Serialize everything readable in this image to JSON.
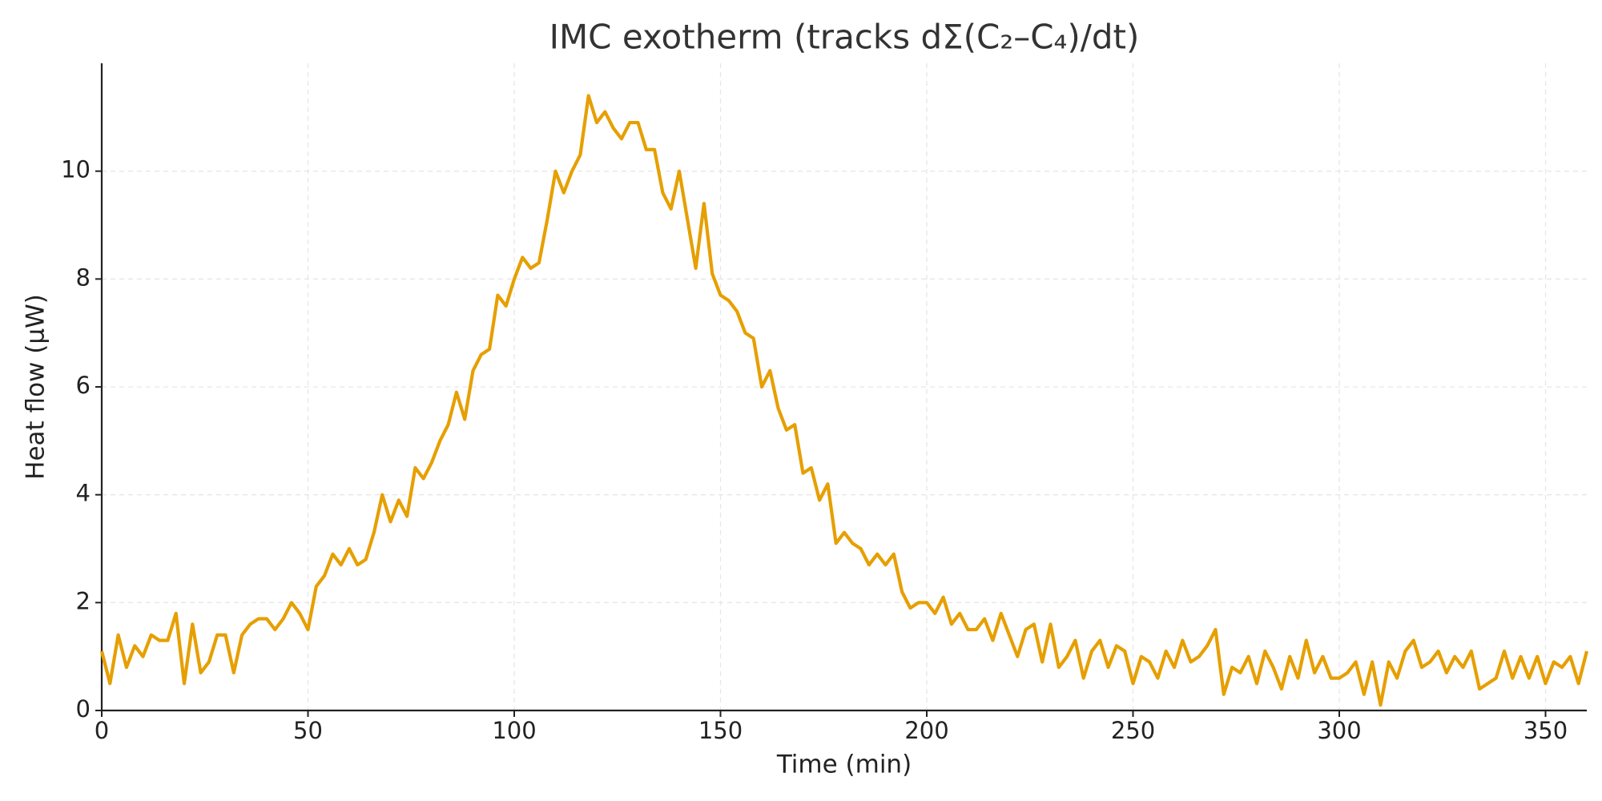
{
  "chart_data": {
    "type": "line",
    "title": "IMC exotherm (tracks dΣ(C₂–C₄)/dt)",
    "x_label": "Time (min)",
    "y_label": "Heat flow (μW)",
    "xlim": [
      0,
      360
    ],
    "ylim": [
      0,
      12
    ],
    "xticks": [
      0,
      50,
      100,
      150,
      200,
      250,
      300,
      350
    ],
    "yticks": [
      0,
      2,
      4,
      6,
      8,
      10
    ],
    "grid": true,
    "series": [
      {
        "name": "Heat flow",
        "color": "#e69f00",
        "x": [
          0,
          2,
          4,
          6,
          8,
          10,
          12,
          14,
          16,
          18,
          20,
          22,
          24,
          26,
          28,
          30,
          32,
          34,
          36,
          38,
          40,
          42,
          44,
          46,
          48,
          50,
          52,
          54,
          56,
          58,
          60,
          62,
          64,
          66,
          68,
          70,
          72,
          74,
          76,
          78,
          80,
          82,
          84,
          86,
          88,
          90,
          92,
          94,
          96,
          98,
          100,
          102,
          104,
          106,
          108,
          110,
          112,
          114,
          116,
          118,
          120,
          122,
          124,
          126,
          128,
          130,
          132,
          134,
          136,
          138,
          140,
          142,
          144,
          146,
          148,
          150,
          152,
          154,
          156,
          158,
          160,
          162,
          164,
          166,
          168,
          170,
          172,
          174,
          176,
          178,
          180,
          182,
          184,
          186,
          188,
          190,
          192,
          194,
          196,
          198,
          200,
          202,
          204,
          206,
          208,
          210,
          212,
          214,
          216,
          218,
          220,
          222,
          224,
          226,
          228,
          230,
          232,
          234,
          236,
          238,
          240,
          242,
          244,
          246,
          248,
          250,
          252,
          254,
          256,
          258,
          260,
          262,
          264,
          266,
          268,
          270,
          272,
          274,
          276,
          278,
          280,
          282,
          284,
          286,
          288,
          290,
          292,
          294,
          296,
          298,
          300,
          302,
          304,
          306,
          308,
          310,
          312,
          314,
          316,
          318,
          320,
          322,
          324,
          326,
          328,
          330,
          332,
          334,
          336,
          338,
          340,
          342,
          344,
          346,
          348,
          350,
          352,
          354,
          356,
          358,
          360
        ],
        "values": [
          1.1,
          0.5,
          1.4,
          0.8,
          1.2,
          1.0,
          1.4,
          1.3,
          1.3,
          1.8,
          0.5,
          1.6,
          0.7,
          0.9,
          1.4,
          1.4,
          0.7,
          1.4,
          1.6,
          1.7,
          1.7,
          1.5,
          1.7,
          2.0,
          1.8,
          1.5,
          2.3,
          2.5,
          2.9,
          2.7,
          3.0,
          2.7,
          2.8,
          3.3,
          4.0,
          3.5,
          3.9,
          3.6,
          4.5,
          4.3,
          4.6,
          5.0,
          5.3,
          5.9,
          5.4,
          6.3,
          6.6,
          6.7,
          7.7,
          7.5,
          8.0,
          8.4,
          8.2,
          8.3,
          9.1,
          10.0,
          9.6,
          10.0,
          10.3,
          11.4,
          10.9,
          11.1,
          10.8,
          10.6,
          10.9,
          10.9,
          10.4,
          10.4,
          9.6,
          9.3,
          10.0,
          9.1,
          8.2,
          9.4,
          8.1,
          7.7,
          7.6,
          7.4,
          7.0,
          6.9,
          6.0,
          6.3,
          5.6,
          5.2,
          5.3,
          4.4,
          4.5,
          3.9,
          4.2,
          3.1,
          3.3,
          3.1,
          3.0,
          2.7,
          2.9,
          2.7,
          2.9,
          2.2,
          1.9,
          2.0,
          2.0,
          1.8,
          2.1,
          1.6,
          1.8,
          1.5,
          1.5,
          1.7,
          1.3,
          1.8,
          1.4,
          1.0,
          1.5,
          1.6,
          0.9,
          1.6,
          0.8,
          1.0,
          1.3,
          0.6,
          1.1,
          1.3,
          0.8,
          1.2,
          1.1,
          0.5,
          1.0,
          0.9,
          0.6,
          1.1,
          0.8,
          1.3,
          0.9,
          1.0,
          1.2,
          1.5,
          0.3,
          0.8,
          0.7,
          1.0,
          0.5,
          1.1,
          0.8,
          0.4,
          1.0,
          0.6,
          1.3,
          0.7,
          1.0,
          0.6,
          0.6,
          0.7,
          0.9,
          0.3,
          0.9,
          0.1,
          0.9,
          0.6,
          1.1,
          1.3,
          0.8,
          0.9,
          1.1,
          0.7,
          1.0,
          0.8,
          1.1,
          0.4,
          0.5,
          0.6,
          1.1,
          0.6,
          1.0,
          0.6,
          1.0,
          0.5,
          0.9,
          0.8,
          1.0,
          0.5,
          1.1
        ]
      }
    ]
  }
}
